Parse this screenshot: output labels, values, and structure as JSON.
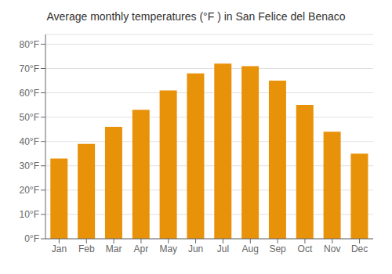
{
  "chart_data": {
    "type": "bar",
    "title": "Average monthly temperatures (°F ) in San Felice del Benaco",
    "categories": [
      "Jan",
      "Feb",
      "Mar",
      "Apr",
      "May",
      "Jun",
      "Jul",
      "Aug",
      "Sep",
      "Oct",
      "Nov",
      "Dec"
    ],
    "values": [
      33,
      39,
      46,
      53,
      61,
      68,
      72,
      71,
      65,
      55,
      44,
      35
    ],
    "color": "#E8920A",
    "ylim": [
      0,
      84
    ],
    "yticks": [
      {
        "value": 0,
        "label": "0°F"
      },
      {
        "value": 10,
        "label": "10°F"
      },
      {
        "value": 20,
        "label": "20°F"
      },
      {
        "value": 30,
        "label": "30°F"
      },
      {
        "value": 40,
        "label": "40°F"
      },
      {
        "value": 50,
        "label": "50°F"
      },
      {
        "value": 60,
        "label": "60°F"
      },
      {
        "value": 70,
        "label": "70°F"
      },
      {
        "value": 80,
        "label": "80°F"
      }
    ],
    "grid": true
  }
}
